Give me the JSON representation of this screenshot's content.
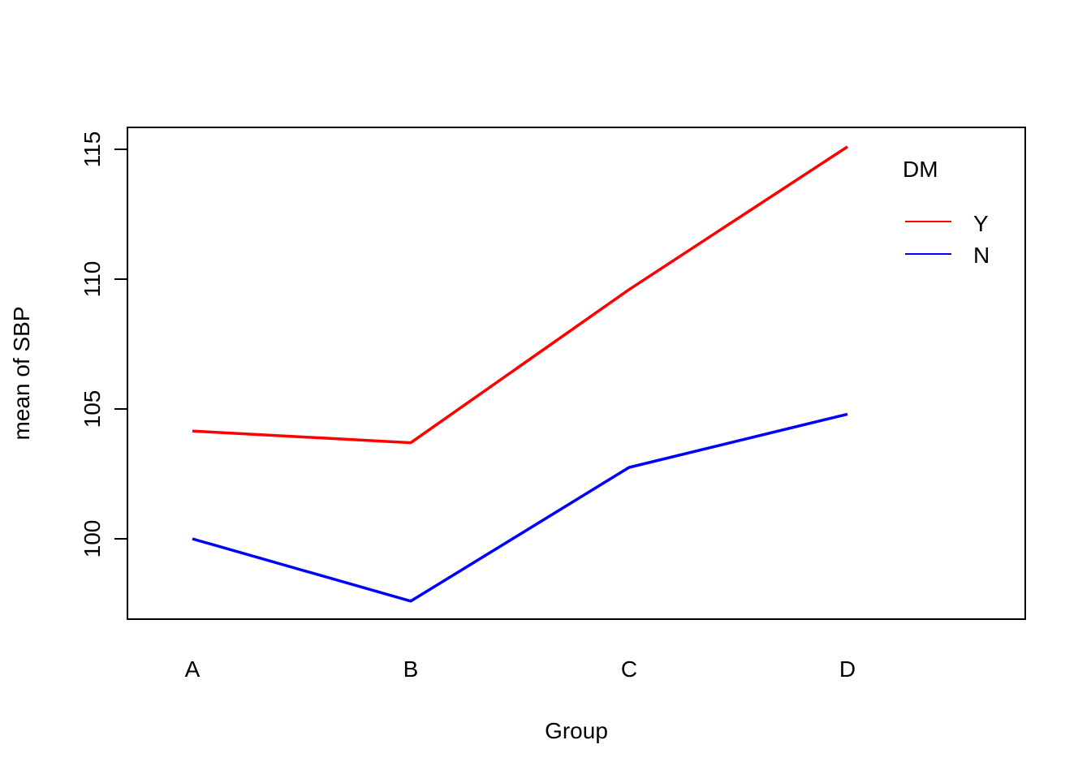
{
  "chart_data": {
    "type": "line",
    "title": "",
    "xlabel": "Group",
    "ylabel": "mean of  SBP",
    "categories": [
      "A",
      "B",
      "C",
      "D"
    ],
    "yticks": [
      100,
      105,
      110,
      115
    ],
    "ylim": [
      96.9,
      115.8
    ],
    "grid": false,
    "legend": {
      "title": "DM",
      "placement": "top-right",
      "entries": [
        "Y",
        "N"
      ]
    },
    "series": [
      {
        "name": "Y",
        "color": "#ff0000",
        "values": [
          104.15,
          103.7,
          109.6,
          115.1
        ]
      },
      {
        "name": "N",
        "color": "#0000ff",
        "values": [
          100.0,
          97.6,
          102.75,
          104.8
        ]
      }
    ]
  }
}
